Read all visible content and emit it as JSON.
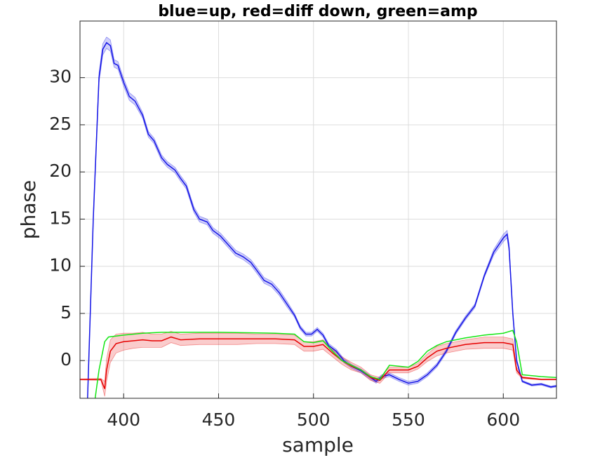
{
  "chart_data": {
    "type": "line",
    "title": "blue=up, red=diff down, green=amp",
    "xlabel": "sample",
    "ylabel": "phase",
    "xlim": [
      377,
      628
    ],
    "ylim": [
      -4,
      36
    ],
    "xticks": [
      400,
      450,
      500,
      550,
      600
    ],
    "yticks": [
      0,
      5,
      10,
      15,
      20,
      25,
      30
    ],
    "grid": true,
    "series": [
      {
        "color": "#1414e6",
        "x": [
          381,
          384,
          387,
          389,
          391,
          393,
          395,
          397,
          400,
          403,
          406,
          410,
          413,
          416,
          420,
          423,
          427,
          430,
          433,
          437,
          440,
          444,
          447,
          451,
          455,
          459,
          463,
          467,
          470,
          474,
          478,
          482,
          486,
          490,
          493,
          496,
          499,
          502,
          505,
          508,
          512,
          516,
          520,
          525,
          530,
          533,
          536,
          540,
          545,
          550,
          555,
          560,
          565,
          570,
          575,
          580,
          585,
          590,
          595,
          600,
          602,
          603,
          605,
          607,
          610,
          615,
          620,
          625,
          628
        ],
        "values": [
          -4,
          15,
          30,
          33,
          33.7,
          33.4,
          31.5,
          31.3,
          29.5,
          28,
          27.5,
          26,
          24,
          23.3,
          21.5,
          20.8,
          20.2,
          19.3,
          18.5,
          16,
          15,
          14.7,
          13.8,
          13.2,
          12.3,
          11.4,
          11,
          10.4,
          9.6,
          8.5,
          8.1,
          7.2,
          6,
          4.8,
          3.5,
          2.8,
          2.8,
          3.3,
          2.7,
          1.6,
          1,
          0,
          -0.6,
          -1.1,
          -1.8,
          -2.2,
          -1.7,
          -1.5,
          -2,
          -2.4,
          -2.2,
          -1.5,
          -0.5,
          1,
          3,
          4.5,
          5.8,
          9,
          11.5,
          13,
          13.4,
          12,
          5,
          0,
          -2.2,
          -2.6,
          -2.5,
          -2.8,
          -2.7
        ],
        "errors": [
          0.3,
          0.4,
          0.5,
          0.6,
          0.6,
          0.6,
          0.4,
          0.4,
          0.4,
          0.4,
          0.4,
          0.3,
          0.3,
          0.3,
          0.3,
          0.3,
          0.3,
          0.3,
          0.3,
          0.3,
          0.3,
          0.3,
          0.3,
          0.3,
          0.3,
          0.3,
          0.3,
          0.3,
          0.3,
          0.3,
          0.3,
          0.3,
          0.3,
          0.2,
          0.2,
          0.2,
          0.2,
          0.2,
          0.2,
          0.2,
          0.2,
          0.2,
          0.2,
          0.2,
          0.2,
          0.2,
          0.2,
          0.2,
          0.2,
          0.2,
          0.2,
          0.2,
          0.2,
          0.2,
          0.2,
          0.2,
          0.2,
          0.2,
          0.3,
          0.4,
          0.4,
          0.4,
          0.3,
          0.2,
          0.1,
          0.1,
          0.1,
          0.1,
          0.1
        ]
      },
      {
        "color": "#e60000",
        "x": [
          377,
          388,
          390,
          391,
          393,
          396,
          400,
          405,
          410,
          415,
          420,
          425,
          430,
          440,
          450,
          460,
          470,
          480,
          490,
          495,
          500,
          505,
          510,
          515,
          520,
          525,
          530,
          535,
          540,
          545,
          550,
          555,
          560,
          565,
          570,
          580,
          590,
          600,
          605,
          607,
          610,
          620,
          628
        ],
        "values": [
          -2,
          -2,
          -3,
          -1,
          1,
          1.8,
          2,
          2.1,
          2.2,
          2.1,
          2.1,
          2.5,
          2.2,
          2.3,
          2.3,
          2.3,
          2.3,
          2.3,
          2.2,
          1.5,
          1.5,
          1.7,
          0.8,
          0,
          -0.6,
          -1,
          -1.8,
          -2.1,
          -1,
          -1,
          -1,
          -0.6,
          0.3,
          1,
          1.3,
          1.7,
          1.9,
          1.9,
          1.7,
          -1,
          -1.8,
          -2,
          -2
        ],
        "errors": [
          0.05,
          0.1,
          0.8,
          1.2,
          1.2,
          1,
          0.9,
          0.8,
          0.8,
          0.7,
          0.7,
          0.6,
          0.6,
          0.6,
          0.6,
          0.6,
          0.5,
          0.5,
          0.5,
          0.5,
          0.5,
          0.5,
          0.4,
          0.4,
          0.4,
          0.3,
          0.3,
          0.3,
          0.3,
          0.3,
          0.3,
          0.3,
          0.4,
          0.5,
          0.5,
          0.5,
          0.6,
          0.6,
          0.6,
          0.3,
          0.1,
          0.05,
          0.05
        ]
      },
      {
        "color": "#14e614",
        "x": [
          385,
          387,
          390,
          392,
          400,
          410,
          420,
          450,
          480,
          490,
          495,
          500,
          505,
          510,
          515,
          520,
          525,
          530,
          535,
          540,
          550,
          555,
          560,
          565,
          570,
          580,
          590,
          600,
          605,
          607,
          610,
          620,
          628
        ],
        "values": [
          -4,
          -1,
          2,
          2.5,
          2.7,
          2.9,
          3,
          3,
          2.9,
          2.8,
          2,
          1.9,
          2.1,
          1,
          0,
          -0.5,
          -1,
          -1.7,
          -2,
          -0.5,
          -0.7,
          -0.1,
          1,
          1.6,
          2,
          2.4,
          2.7,
          2.9,
          3.2,
          2,
          -1.5,
          -1.7,
          -1.8
        ]
      }
    ]
  }
}
